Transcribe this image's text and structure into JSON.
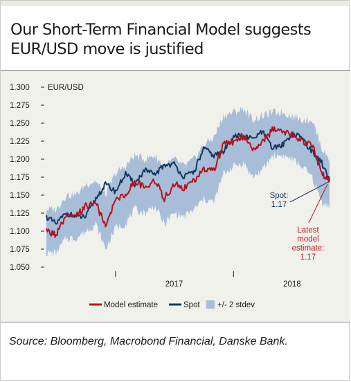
{
  "page": {
    "title": "Our Short-Term Financial Model suggests EUR/USD move is justified",
    "source": "Source: Bloomberg, Macrobond Financial, Danske Bank."
  },
  "chart_data": {
    "type": "line",
    "ylabel": "EUR/USD",
    "ylim": [
      1.05,
      1.3
    ],
    "yticks": [
      "1.050",
      "1.075",
      "1.100",
      "1.125",
      "1.150",
      "1.175",
      "1.200",
      "1.225",
      "1.250",
      "1.275",
      "1.300"
    ],
    "xlim": [
      "2016-06-01",
      "2018-10-25"
    ],
    "xticks": [
      "2017",
      "2018"
    ],
    "grid": false,
    "legend": "bottom",
    "legend_entries": [
      "Model estimate",
      "Spot",
      "+/- 2 stdev"
    ],
    "colors": {
      "model": "#b5121b",
      "spot": "#13395e",
      "band": "#a7bdd8"
    },
    "series": [
      {
        "name": "Spot",
        "x": [
          "2016-06-01",
          "2016-07-01",
          "2016-08-01",
          "2016-09-01",
          "2016-10-01",
          "2016-11-01",
          "2016-12-01",
          "2017-01-01",
          "2017-02-01",
          "2017-03-01",
          "2017-04-01",
          "2017-05-01",
          "2017-06-01",
          "2017-07-01",
          "2017-08-01",
          "2017-09-01",
          "2017-10-01",
          "2017-11-01",
          "2017-12-01",
          "2018-01-01",
          "2018-02-01",
          "2018-03-01",
          "2018-04-01",
          "2018-05-01",
          "2018-06-01",
          "2018-07-01",
          "2018-08-01",
          "2018-09-01",
          "2018-10-01",
          "2018-10-25"
        ],
        "values": [
          1.12,
          1.11,
          1.125,
          1.12,
          1.12,
          1.145,
          1.165,
          1.155,
          1.18,
          1.165,
          1.185,
          1.178,
          1.192,
          1.193,
          1.175,
          1.183,
          1.215,
          1.205,
          1.21,
          1.233,
          1.232,
          1.228,
          1.238,
          1.215,
          1.22,
          1.235,
          1.23,
          1.21,
          1.195,
          1.17
        ]
      },
      {
        "name": "Model estimate",
        "x": [
          "2016-06-01",
          "2016-07-01",
          "2016-08-01",
          "2016-09-01",
          "2016-10-01",
          "2016-11-01",
          "2016-12-01",
          "2017-01-01",
          "2017-02-01",
          "2017-03-01",
          "2017-04-01",
          "2017-05-01",
          "2017-06-01",
          "2017-07-01",
          "2017-08-01",
          "2017-09-01",
          "2017-10-01",
          "2017-11-01",
          "2017-12-01",
          "2018-01-01",
          "2018-02-01",
          "2018-03-01",
          "2018-04-01",
          "2018-05-01",
          "2018-06-01",
          "2018-07-01",
          "2018-08-01",
          "2018-09-01",
          "2018-10-01",
          "2018-10-25"
        ],
        "values": [
          1.1,
          1.095,
          1.12,
          1.12,
          1.135,
          1.14,
          1.105,
          1.145,
          1.15,
          1.17,
          1.16,
          1.172,
          1.145,
          1.165,
          1.16,
          1.17,
          1.185,
          1.185,
          1.22,
          1.225,
          1.232,
          1.215,
          1.225,
          1.24,
          1.24,
          1.235,
          1.225,
          1.22,
          1.18,
          1.168
        ]
      },
      {
        "name": "+/- 2 stdev",
        "x": [
          "2016-06-01",
          "2016-07-01",
          "2016-08-01",
          "2016-09-01",
          "2016-10-01",
          "2016-11-01",
          "2016-12-01",
          "2017-01-01",
          "2017-02-01",
          "2017-03-01",
          "2017-04-01",
          "2017-05-01",
          "2017-06-01",
          "2017-07-01",
          "2017-08-01",
          "2017-09-01",
          "2017-10-01",
          "2017-11-01",
          "2017-12-01",
          "2018-01-01",
          "2018-02-01",
          "2018-03-01",
          "2018-04-01",
          "2018-05-01",
          "2018-06-01",
          "2018-07-01",
          "2018-08-01",
          "2018-09-01",
          "2018-10-01",
          "2018-10-25"
        ],
        "upper": [
          1.13,
          1.13,
          1.15,
          1.15,
          1.165,
          1.17,
          1.15,
          1.18,
          1.19,
          1.205,
          1.2,
          1.205,
          1.19,
          1.2,
          1.19,
          1.2,
          1.22,
          1.23,
          1.26,
          1.265,
          1.27,
          1.255,
          1.26,
          1.265,
          1.265,
          1.26,
          1.255,
          1.255,
          1.215,
          1.2
        ],
        "lower": [
          1.07,
          1.07,
          1.09,
          1.09,
          1.1,
          1.11,
          1.075,
          1.105,
          1.11,
          1.13,
          1.125,
          1.135,
          1.11,
          1.125,
          1.12,
          1.13,
          1.145,
          1.14,
          1.18,
          1.19,
          1.195,
          1.175,
          1.185,
          1.205,
          1.205,
          1.2,
          1.19,
          1.175,
          1.14,
          1.135
        ]
      }
    ],
    "annotations": [
      {
        "text_lines": [
          "Spot:",
          "1.17"
        ],
        "target": {
          "x": "2018-10-25",
          "y": 1.17
        }
      },
      {
        "text_lines": [
          "Latest",
          "model",
          "estimate:",
          "1.17"
        ],
        "target": {
          "x": "2018-10-25",
          "y": 1.168
        }
      }
    ]
  }
}
